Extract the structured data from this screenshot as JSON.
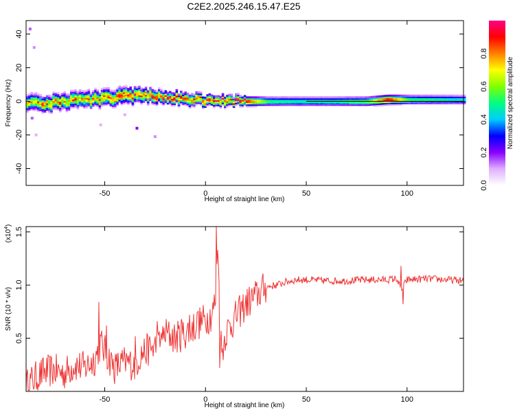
{
  "chart_data": [
    {
      "type": "heatmap",
      "title": "C2E2.2025.246.15.47.E25",
      "xlabel": "Height of straight line (km)",
      "ylabel": "Frequency (Hz)",
      "xlim": [
        -89,
        128
      ],
      "ylim": [
        -50,
        48
      ],
      "xticks": [
        -50,
        0,
        50,
        100
      ],
      "yticks": [
        -40,
        -20,
        0,
        20,
        40
      ],
      "colorbar": {
        "label": "Normalized spectral amplitude",
        "range": [
          0,
          1
        ],
        "ticks": [
          "0.0",
          "0.2",
          "0.4",
          "0.6",
          "0.8"
        ],
        "colormap": [
          "#ffffff",
          "#e0b0ff",
          "#8800ff",
          "#0000ff",
          "#00ccff",
          "#00ff80",
          "#80ff00",
          "#ffff00",
          "#ff8000",
          "#ff0000",
          "#ff0088"
        ]
      },
      "band": {
        "x": [
          -89,
          -80,
          -70,
          -60,
          -50,
          -40,
          -30,
          -20,
          -10,
          0,
          10,
          20,
          30,
          40,
          60,
          80,
          90,
          100,
          128
        ],
        "center_freq": [
          0,
          -1,
          0,
          1,
          2,
          3,
          3.5,
          3,
          1.5,
          0.5,
          0.5,
          0,
          0,
          0,
          0,
          0,
          1,
          1,
          1
        ],
        "half_width": [
          5,
          5,
          5,
          5,
          5,
          5,
          4.5,
          4,
          4,
          3.5,
          3.5,
          3,
          3,
          3,
          3,
          3,
          3,
          3,
          3
        ],
        "peak_amplitude": [
          0.7,
          0.75,
          0.75,
          0.75,
          0.8,
          0.85,
          0.8,
          0.85,
          0.8,
          0.85,
          0.8,
          0.95,
          0.55,
          0.5,
          0.5,
          0.6,
          0.98,
          0.55,
          0.45
        ]
      },
      "scatter_points": [
        {
          "x": -87,
          "freq": 43,
          "amp": 0.15
        },
        {
          "x": -85,
          "freq": 32,
          "amp": 0.12
        },
        {
          "x": -86,
          "freq": -10,
          "amp": 0.15
        },
        {
          "x": -84,
          "freq": -20,
          "amp": 0.1
        },
        {
          "x": -52,
          "freq": -14,
          "amp": 0.1
        },
        {
          "x": -34,
          "freq": -16,
          "amp": 0.2
        },
        {
          "x": -25,
          "freq": -21,
          "amp": 0.12
        },
        {
          "x": -40,
          "freq": -8,
          "amp": 0.1
        }
      ]
    },
    {
      "type": "line",
      "xlabel": "Height of straight line (km)",
      "ylabel": "SNR (10 * v/v)",
      "y_multiplier": "(x10",
      "y_multiplier_exp": "4",
      "y_multiplier_close": ")",
      "xlim": [
        -89,
        128
      ],
      "ylim": [
        0,
        1.55
      ],
      "xticks": [
        -50,
        0,
        50,
        100
      ],
      "yticks": [
        "0.5",
        "1.0",
        "1.5"
      ],
      "series": [
        {
          "name": "SNR",
          "color": "#ee3333",
          "x": [
            -89,
            -85,
            -80,
            -75,
            -70,
            -65,
            -60,
            -55,
            -52,
            -50,
            -45,
            -40,
            -35,
            -32,
            -30,
            -25,
            -22,
            -20,
            -15,
            -10,
            -5,
            0,
            3,
            5,
            6,
            7,
            8,
            10,
            15,
            20,
            25,
            30,
            35,
            40,
            45,
            50,
            60,
            70,
            80,
            90,
            95,
            97,
            100,
            110,
            120,
            128
          ],
          "y": [
            0.05,
            0.12,
            0.18,
            0.2,
            0.17,
            0.25,
            0.22,
            0.3,
            0.45,
            0.38,
            0.22,
            0.28,
            0.25,
            0.35,
            0.38,
            0.42,
            0.45,
            0.55,
            0.5,
            0.55,
            0.62,
            0.68,
            0.72,
            0.85,
            1.45,
            0.78,
            0.35,
            0.55,
            0.7,
            0.82,
            0.9,
            0.98,
            1.0,
            1.03,
            1.05,
            1.05,
            1.04,
            1.04,
            1.05,
            1.05,
            1.06,
            0.95,
            1.05,
            1.06,
            1.05,
            1.04
          ]
        }
      ],
      "spikes": [
        {
          "x": -53,
          "y": 0.84
        },
        {
          "x": -49,
          "y": 0.62
        },
        {
          "x": -40,
          "y": 0.3
        },
        {
          "x": -35,
          "y": 0.52
        },
        {
          "x": -24,
          "y": 0.66
        },
        {
          "x": -22,
          "y": 0.55
        },
        {
          "x": -12,
          "y": 0.68
        },
        {
          "x": -8,
          "y": 0.72
        },
        {
          "x": -4,
          "y": 0.75
        },
        {
          "x": 5.5,
          "y": 1.55
        },
        {
          "x": 7,
          "y": 0.22
        },
        {
          "x": 97,
          "y": 1.18
        },
        {
          "x": 98,
          "y": 0.82
        }
      ]
    }
  ]
}
